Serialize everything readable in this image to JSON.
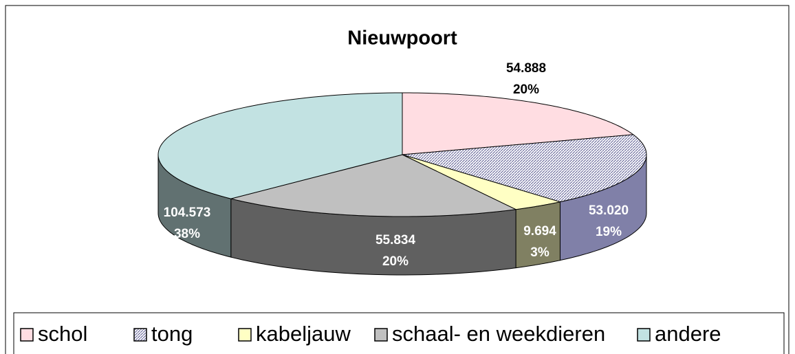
{
  "chart_data": {
    "type": "pie3d",
    "title": "Nieuwpoort",
    "categories": [
      "schol",
      "tong",
      "kabeljauw",
      "schaal- en weekdieren",
      "andere"
    ],
    "values": [
      54888,
      53020,
      9694,
      55834,
      104573
    ],
    "value_labels": [
      "54.888",
      "53.020",
      "9.694",
      "55.834",
      "104.573"
    ],
    "percent_labels": [
      "20%",
      "19%",
      "3%",
      "20%",
      "38%"
    ],
    "colors": [
      "#ffdde2",
      "#c8c8ec",
      "#ffffc4",
      "#c0c0c0",
      "#c2e2e2"
    ],
    "legend": "bottom"
  }
}
